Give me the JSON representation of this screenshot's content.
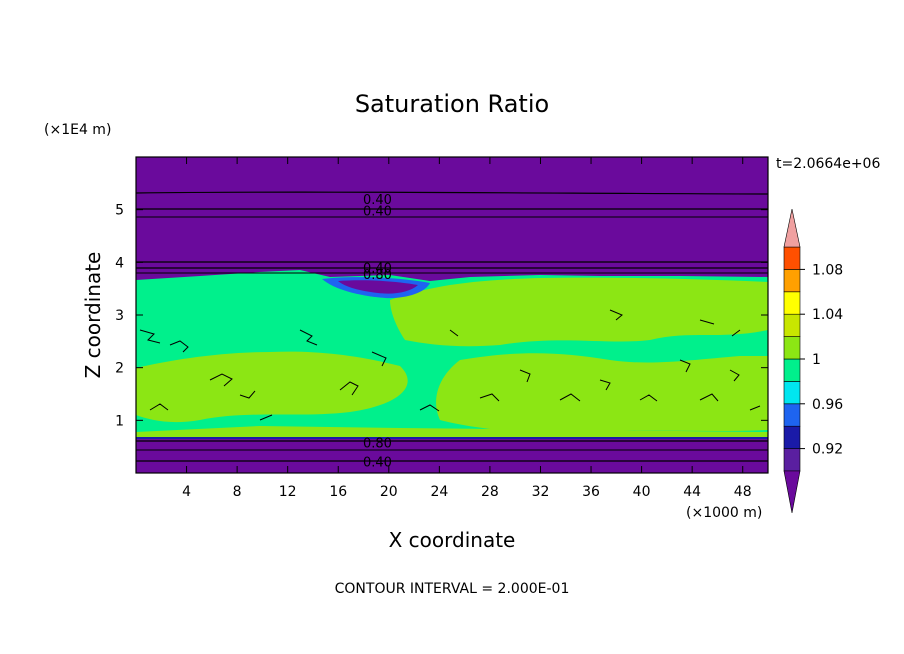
{
  "chart_data": {
    "type": "contour",
    "title": "Saturation Ratio",
    "xlabel": "X coordinate",
    "ylabel": "Z coordinate",
    "x_unit": "(×1000 m)",
    "y_unit": "(×1E4 m)",
    "time_label": "t=2.0664e+06",
    "footer": "CONTOUR INTERVAL = 2.000E-01",
    "xlim": [
      0,
      50
    ],
    "ylim": [
      0,
      6
    ],
    "x_ticks": [
      4,
      8,
      12,
      16,
      20,
      24,
      28,
      32,
      36,
      40,
      44,
      48
    ],
    "x_tick_labels": [
      "4",
      "8",
      "12",
      "16",
      "20",
      "24",
      "28",
      "32",
      "36",
      "40",
      "44",
      "48"
    ],
    "y_ticks": [
      1,
      2,
      3,
      4,
      5
    ],
    "y_tick_labels": [
      "1",
      "2",
      "3",
      "4",
      "5"
    ],
    "contour_interval": 0.2,
    "colorbar": {
      "levels": [
        0.9,
        0.92,
        0.94,
        0.96,
        0.98,
        1.0,
        1.02,
        1.04,
        1.06,
        1.08,
        1.1
      ],
      "tick_labels": [
        "0.92",
        "0.96",
        "1",
        "1.04",
        "1.08"
      ],
      "tick_values": [
        0.92,
        0.96,
        1.0,
        1.04,
        1.08
      ],
      "colors": [
        "#5a1fa0",
        "#1a1aa8",
        "#1e64f0",
        "#00e6f0",
        "#00f08c",
        "#8ce614",
        "#c8e600",
        "#ffff00",
        "#ffa000",
        "#ff5000",
        "#ff1e1e"
      ],
      "under_color": "#6a0a9c",
      "over_color": "#f0a0a0"
    },
    "regions": [
      {
        "z_range": [
          0,
          0.62
        ],
        "level": "<0.9"
      },
      {
        "z_range": [
          0.62,
          3.72
        ],
        "level": "0.98-1.02"
      },
      {
        "z_range": [
          3.72,
          6.0
        ],
        "level": "<0.9"
      }
    ],
    "contour_labels": [
      {
        "text": "0.40",
        "x": 19.1,
        "y": 5.2
      },
      {
        "text": "0.40",
        "x": 19.1,
        "y": 4.98
      },
      {
        "text": "0.40",
        "x": 19.1,
        "y": 3.9
      },
      {
        "text": "0.80",
        "x": 19.1,
        "y": 3.78
      },
      {
        "text": "0.80",
        "x": 19.1,
        "y": 0.58
      },
      {
        "text": "0.40",
        "x": 19.1,
        "y": 0.22
      }
    ]
  }
}
